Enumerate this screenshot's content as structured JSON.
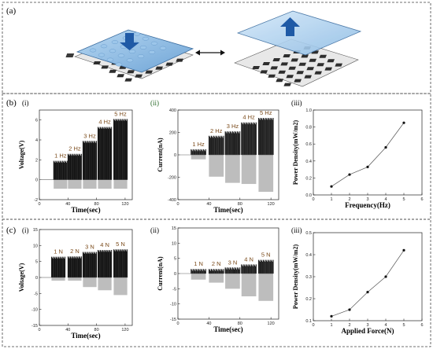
{
  "panel_labels": {
    "a": "(a)",
    "b": "(b)",
    "c": "(c)",
    "bi": "(i)",
    "bii": "(ii)",
    "biii": "(iii)",
    "ci": "(i)",
    "cii": "(ii)",
    "ciii": "(iii)"
  },
  "colors": {
    "frame": "#444444",
    "plate": "#7fb2de",
    "arrow": "#1f5aa6",
    "hz_label": "#7a4a1a"
  },
  "chart_data": [
    {
      "type": "line",
      "panel": "b-i",
      "xlabel": "Time(sec)",
      "ylabel": "Voltage(V)",
      "xlim": [
        0,
        130
      ],
      "ylim": [
        -2,
        7
      ],
      "xticks": [
        "0",
        "40",
        "80",
        "120"
      ],
      "yticks": [
        "6",
        "4",
        "2",
        "0",
        "-2"
      ],
      "bursts": [
        {
          "label": "1 Hz",
          "t0": 20,
          "t1": 39,
          "ymax": 1.9,
          "ymin": -0.9
        },
        {
          "label": "2 Hz",
          "t0": 40,
          "t1": 59,
          "ymax": 2.6,
          "ymin": -0.9
        },
        {
          "label": "3 Hz",
          "t0": 61,
          "t1": 80,
          "ymax": 3.9,
          "ymin": -0.9
        },
        {
          "label": "4 Hz",
          "t0": 82,
          "t1": 101,
          "ymax": 5.3,
          "ymin": -0.9
        },
        {
          "label": "5 Hz",
          "t0": 104,
          "t1": 123,
          "ymax": 6.1,
          "ymin": -0.9
        }
      ]
    },
    {
      "type": "line",
      "panel": "b-ii",
      "xlabel": "Time(sec)",
      "ylabel": "Current(nA)",
      "xlim": [
        0,
        130
      ],
      "ylim": [
        -400,
        400
      ],
      "xticks": [
        "0",
        "40",
        "80",
        "120"
      ],
      "yticks": [
        "400",
        "200",
        "0",
        "-200",
        "-400"
      ],
      "bursts": [
        {
          "label": "1 Hz",
          "t0": 17,
          "t1": 36,
          "ymax": 50,
          "ymin": -40
        },
        {
          "label": "2 Hz",
          "t0": 40,
          "t1": 59,
          "ymax": 170,
          "ymin": -195
        },
        {
          "label": "3 Hz",
          "t0": 61,
          "t1": 80,
          "ymax": 210,
          "ymin": -250
        },
        {
          "label": "4 Hz",
          "t0": 82,
          "t1": 101,
          "ymax": 290,
          "ymin": -260
        },
        {
          "label": "5 Hz",
          "t0": 104,
          "t1": 123,
          "ymax": 330,
          "ymin": -330
        }
      ]
    },
    {
      "type": "line",
      "panel": "b-iii",
      "xlabel": "Frequency(Hz)",
      "ylabel": "Power Density(mW/m2)",
      "xlim": [
        0,
        6
      ],
      "ylim": [
        0,
        1.0
      ],
      "xticks": [
        "0",
        "1",
        "2",
        "3",
        "4",
        "5",
        "6"
      ],
      "yticks": [
        "1.0",
        "0.8",
        "0.6",
        "0.4",
        "0.2",
        "0.0"
      ],
      "x": [
        1,
        2,
        3,
        4,
        5
      ],
      "y": [
        0.1,
        0.24,
        0.33,
        0.56,
        0.85
      ]
    },
    {
      "type": "line",
      "panel": "c-i",
      "xlabel": "Time(sec)",
      "ylabel": "Voltage(V)",
      "xlim": [
        0,
        130
      ],
      "ylim": [
        -15,
        15
      ],
      "xticks": [
        "0",
        "40",
        "80",
        "120"
      ],
      "yticks": [
        "15",
        "10",
        "5",
        "0",
        "-5",
        "-10",
        "-15"
      ],
      "bursts": [
        {
          "label": "1 N",
          "t0": 17,
          "t1": 36,
          "ymax": 6.5,
          "ymin": -1.0
        },
        {
          "label": "2 N",
          "t0": 40,
          "t1": 59,
          "ymax": 6.6,
          "ymin": -1.0
        },
        {
          "label": "3 N",
          "t0": 61,
          "t1": 80,
          "ymax": 8.0,
          "ymin": -3.0
        },
        {
          "label": "4 N",
          "t0": 82,
          "t1": 101,
          "ymax": 8.6,
          "ymin": -4.0
        },
        {
          "label": "5 N",
          "t0": 104,
          "t1": 123,
          "ymax": 8.8,
          "ymin": -5.5
        }
      ]
    },
    {
      "type": "line",
      "panel": "c-ii",
      "xlabel": "Time(sec)",
      "ylabel": "Current(nA)",
      "xlim": [
        0,
        130
      ],
      "ylim": [
        -15,
        15
      ],
      "xticks": [
        "0",
        "40",
        "80",
        "120"
      ],
      "yticks": [
        "15",
        "10",
        "5",
        "0",
        "-5",
        "-10",
        "-15"
      ],
      "bursts": [
        {
          "label": "1 N",
          "t0": 17,
          "t1": 36,
          "ymax": 1.5,
          "ymin": -2.0
        },
        {
          "label": "2 N",
          "t0": 40,
          "t1": 59,
          "ymax": 1.5,
          "ymin": -3.0
        },
        {
          "label": "3 N",
          "t0": 61,
          "t1": 80,
          "ymax": 2.0,
          "ymin": -5.0
        },
        {
          "label": "4 N",
          "t0": 82,
          "t1": 101,
          "ymax": 3.0,
          "ymin": -7.5
        },
        {
          "label": "5 N",
          "t0": 104,
          "t1": 123,
          "ymax": 4.5,
          "ymin": -9.0
        }
      ]
    },
    {
      "type": "line",
      "panel": "c-iii",
      "xlabel": "Applied Force(N)",
      "ylabel": "Power Density(mW/m2)",
      "xlim": [
        0,
        6
      ],
      "ylim": [
        0.1,
        0.5
      ],
      "xticks": [
        "0",
        "1",
        "2",
        "3",
        "4",
        "5",
        "6"
      ],
      "yticks": [
        "0.5",
        "0.4",
        "0.3",
        "0.2",
        "0.1"
      ],
      "x": [
        1,
        2,
        3,
        4,
        5
      ],
      "y": [
        0.12,
        0.15,
        0.23,
        0.3,
        0.42
      ]
    }
  ]
}
